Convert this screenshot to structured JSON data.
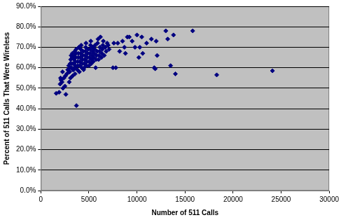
{
  "chart_data": {
    "type": "scatter",
    "x_label": "Number of 511 Calls",
    "y_label": "Percent of 511 Calls That Were Wireless",
    "color": "#000080",
    "marker": "diamond",
    "grid": "y",
    "xlim": [
      0,
      30000
    ],
    "xticks": [
      0,
      5000,
      10000,
      15000,
      20000,
      25000,
      30000
    ],
    "ylim": [
      0,
      90
    ],
    "yticks": [
      {
        "value": 0,
        "label": "0.0%"
      },
      {
        "value": 10,
        "label": "10.0%"
      },
      {
        "value": 20,
        "label": "20.0%"
      },
      {
        "value": 30,
        "label": "30.0%"
      },
      {
        "value": 40,
        "label": "40.0%"
      },
      {
        "value": 50,
        "label": "50.0%"
      },
      {
        "value": 60,
        "label": "60.0%"
      },
      {
        "value": 70,
        "label": "70.0%"
      },
      {
        "value": 80,
        "label": "80.0%"
      },
      {
        "value": 90,
        "label": "90.0%"
      }
    ],
    "x": [
      1600,
      1900,
      2000,
      2050,
      2100,
      2200,
      2250,
      2300,
      2400,
      2500,
      2550,
      2600,
      2700,
      2800,
      2900,
      2950,
      3700,
      3000,
      3020,
      3050,
      3080,
      3100,
      3150,
      3200,
      3220,
      3250,
      3280,
      3300,
      3330,
      3400,
      3420,
      3450,
      3480,
      3500,
      3530,
      3550,
      3580,
      3600,
      3620,
      3650,
      3680,
      3800,
      3820,
      3850,
      3880,
      3900,
      3950,
      4000,
      4030,
      4060,
      4100,
      4130,
      4160,
      4200,
      4250,
      4300,
      4330,
      4360,
      4400,
      4450,
      4500,
      4530,
      4560,
      4600,
      4630,
      4660,
      4700,
      4750,
      4800,
      4830,
      4870,
      4900,
      5000,
      5030,
      5060,
      5100,
      5130,
      5160,
      5200,
      5250,
      5300,
      5330,
      5370,
      5400,
      5450,
      5500,
      5550,
      5600,
      5650,
      5700,
      5750,
      5800,
      5850,
      5900,
      5950,
      6000,
      6050,
      6100,
      6150,
      6200,
      6300,
      6350,
      6400,
      6450,
      6500,
      6600,
      6700,
      6800,
      6900,
      7000,
      7100,
      7500,
      7800,
      7600,
      8000,
      8200,
      8500,
      8700,
      8800,
      9000,
      9200,
      9500,
      9800,
      10000,
      10200,
      10300,
      10500,
      10600,
      11000,
      11500,
      11800,
      11900,
      12000,
      12100,
      13000,
      13200,
      13500,
      13800,
      14000,
      15800,
      18300,
      24100
    ],
    "values": [
      47.5,
      48,
      52,
      55,
      54,
      53,
      58,
      50,
      55,
      51,
      56,
      47,
      57,
      59,
      61,
      53,
      41.5,
      58,
      60,
      62,
      55,
      64,
      66,
      60,
      62,
      65,
      67,
      56,
      59,
      59,
      62,
      64,
      66,
      60,
      68,
      57,
      61,
      63,
      65,
      67,
      69,
      59,
      61,
      63,
      65,
      67,
      70,
      58,
      61,
      63,
      65,
      67,
      69,
      71,
      60,
      62,
      64,
      66,
      68,
      59,
      60,
      62,
      64,
      66,
      68,
      70,
      72,
      61,
      63,
      65,
      67,
      69,
      61,
      63,
      65,
      67,
      69,
      71,
      73,
      62,
      64,
      66,
      68,
      70,
      63,
      65,
      67,
      69,
      71,
      60,
      64,
      66,
      68,
      72,
      74,
      64,
      66,
      68,
      70,
      75,
      65,
      67,
      69,
      71,
      73,
      66,
      70,
      68,
      72,
      71,
      69,
      60,
      60,
      72,
      72,
      68,
      73,
      70,
      67,
      75,
      75,
      73,
      70,
      76,
      65,
      70,
      75,
      67,
      72,
      74,
      60,
      59.5,
      73,
      66,
      78,
      74,
      61,
      76,
      57,
      78,
      56.5,
      58.5
    ]
  }
}
